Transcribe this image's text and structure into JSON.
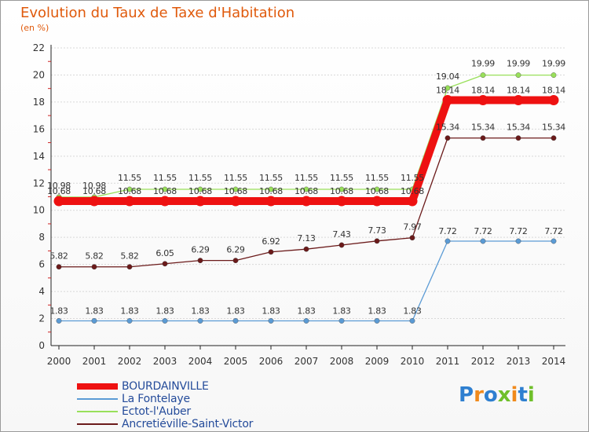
{
  "title": "Evolution du Taux de Taxe d'Habitation",
  "unit": "(en %)",
  "chart_data": {
    "type": "line",
    "title": "Evolution du Taux de Taxe d'Habitation",
    "ylabel": "(en %)",
    "xlabel": "",
    "ylim": [
      0,
      22
    ],
    "yticks": [
      "0",
      "2",
      "4",
      "6",
      "8",
      "10",
      "12",
      "14",
      "16",
      "18",
      "20",
      "22"
    ],
    "categories": [
      "2000",
      "2001",
      "2002",
      "2003",
      "2004",
      "2005",
      "2006",
      "2007",
      "2008",
      "2009",
      "2010",
      "2011",
      "2012",
      "2013",
      "2014"
    ],
    "series": [
      {
        "name": "BOURDAINVILLE",
        "color": "#ee1111",
        "values": [
          10.68,
          10.68,
          10.68,
          10.68,
          10.68,
          10.68,
          10.68,
          10.68,
          10.68,
          10.68,
          10.68,
          18.14,
          18.14,
          18.14,
          18.14
        ],
        "labels": [
          "10.68",
          "10.68",
          "10.68",
          "10.68",
          "10.68",
          "10.68",
          "10.68",
          "10.68",
          "10.68",
          "10.68",
          "10.68",
          "18.14",
          "18.14",
          "18.14",
          "18.14"
        ]
      },
      {
        "name": "La Fontelaye",
        "color": "#5b9bd5",
        "values": [
          1.83,
          1.83,
          1.83,
          1.83,
          1.83,
          1.83,
          1.83,
          1.83,
          1.83,
          1.83,
          1.83,
          7.72,
          7.72,
          7.72,
          7.72
        ],
        "labels": [
          "1.83",
          "1.83",
          "1.83",
          "1.83",
          "1.83",
          "1.83",
          "1.83",
          "1.83",
          "1.83",
          "1.83",
          "1.83",
          "7.72",
          "7.72",
          "7.72",
          "7.72"
        ]
      },
      {
        "name": "Ectot-l'Auber",
        "color": "#99e05a",
        "values": [
          10.98,
          10.98,
          11.55,
          11.55,
          11.55,
          11.55,
          11.55,
          11.55,
          11.55,
          11.55,
          11.55,
          19.04,
          19.99,
          19.99,
          19.99
        ],
        "labels": [
          "10.98",
          "10.98",
          "11.55",
          "11.55",
          "11.55",
          "11.55",
          "11.55",
          "11.55",
          "11.55",
          "11.55",
          "11.55",
          "19.04",
          "19.99",
          "19.99",
          "19.99"
        ]
      },
      {
        "name": "Ancretiéville-Saint-Victor",
        "color": "#6b1a1a",
        "values": [
          5.82,
          5.82,
          5.82,
          6.05,
          6.29,
          6.29,
          6.92,
          7.13,
          7.43,
          7.73,
          7.97,
          15.34,
          15.34,
          15.34,
          15.34
        ],
        "labels": [
          "5.82",
          "5.82",
          "5.82",
          "6.05",
          "6.29",
          "6.29",
          "6.92",
          "7.13",
          "7.43",
          "7.73",
          "7.97",
          "15.34",
          "15.34",
          "15.34",
          "15.34"
        ]
      }
    ],
    "legend_position": "bottom-left"
  },
  "logo": {
    "text": "Proxiti",
    "letters": [
      "P",
      "r",
      "o",
      "x",
      "i",
      "t",
      "i"
    ],
    "colors": [
      "#2e7fd0",
      "#f08a1c",
      "#2e7fd0",
      "#6fbf2a",
      "#f08a1c",
      "#2e7fd0",
      "#6fbf2a"
    ]
  }
}
